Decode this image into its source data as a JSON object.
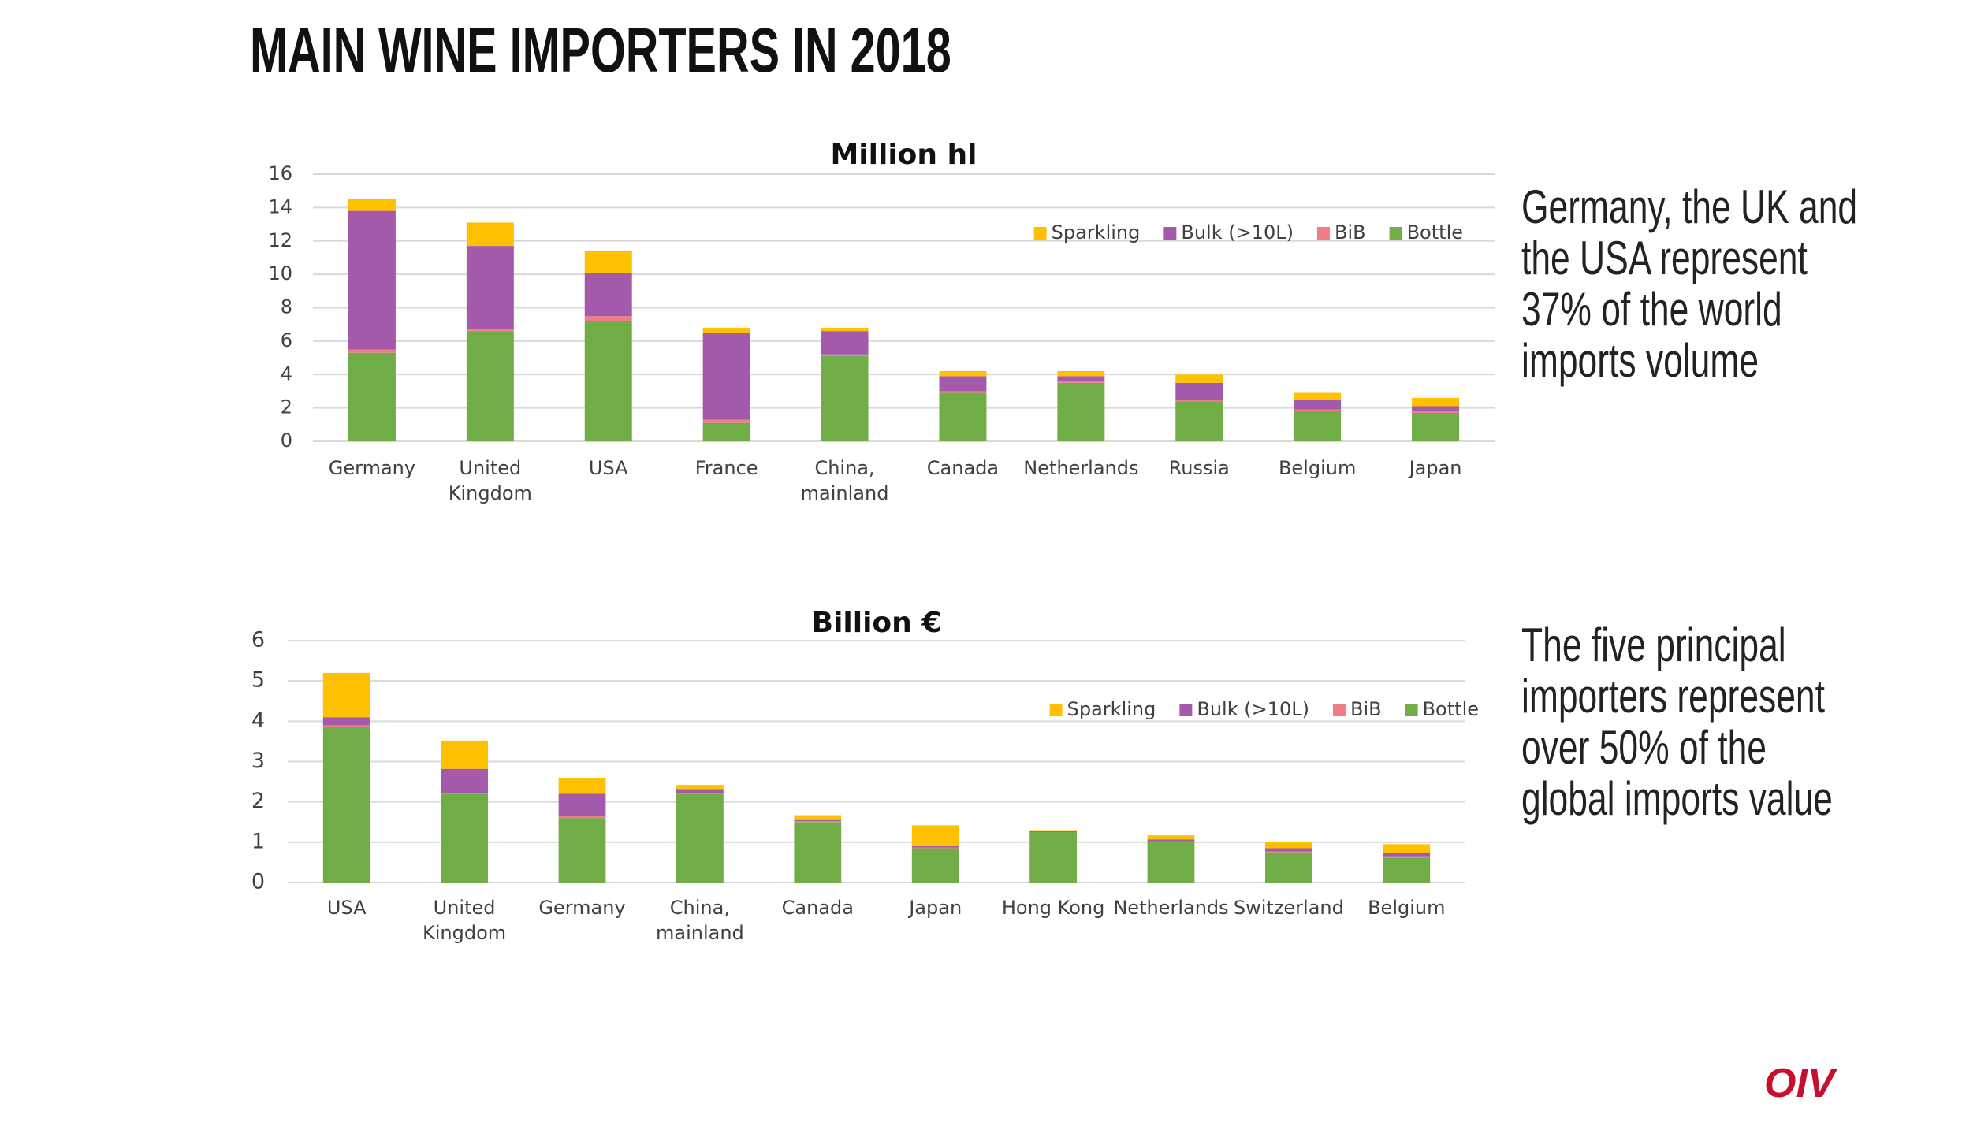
{
  "title": "MAIN WINE IMPORTERS  IN 2018",
  "notes": [
    "Germany, the UK and\nthe USA represent\n37% of the world\nimports volume",
    "The five principal\nimporters represent\nover 50% of the\nglobal imports value"
  ],
  "logo": "OIV",
  "chart_data": [
    {
      "type": "bar",
      "stacked": true,
      "title": "Million hl",
      "categories": [
        "Germany",
        "United\nKingdom",
        "USA",
        "France",
        "China,\nmainland",
        "Canada",
        "Netherlands",
        "Russia",
        "Belgium",
        "Japan"
      ],
      "series": [
        {
          "name": "Sparkling",
          "color": "#ffc000",
          "values": [
            0.7,
            1.4,
            1.3,
            0.3,
            0.2,
            0.3,
            0.3,
            0.5,
            0.4,
            0.5
          ]
        },
        {
          "name": "Bulk (>10L)",
          "color": "#a35aab",
          "values": [
            8.3,
            5.0,
            2.6,
            5.2,
            1.4,
            0.9,
            0.3,
            1.0,
            0.6,
            0.3
          ]
        },
        {
          "name": "BiB",
          "color": "#f07c8a",
          "values": [
            0.2,
            0.1,
            0.3,
            0.2,
            0.1,
            0.1,
            0.1,
            0.1,
            0.1,
            0.1
          ]
        },
        {
          "name": "Bottle",
          "color": "#70ad47",
          "values": [
            5.3,
            6.6,
            7.2,
            1.1,
            5.1,
            2.9,
            3.5,
            2.4,
            1.8,
            1.7
          ]
        }
      ],
      "ylim": [
        0,
        16
      ],
      "yticks": [
        0,
        2,
        4,
        6,
        8,
        10,
        12,
        14,
        16
      ],
      "grid": true,
      "legend": "top-right"
    },
    {
      "type": "bar",
      "stacked": true,
      "title": "Billion €",
      "categories": [
        "USA",
        "United\nKingdom",
        "Germany",
        "China,\nmainland",
        "Canada",
        "Japan",
        "Hong Kong",
        "Netherlands",
        "Switzerland",
        "Belgium"
      ],
      "series": [
        {
          "name": "Sparkling",
          "color": "#ffc000",
          "values": [
            1.1,
            0.7,
            0.4,
            0.1,
            0.1,
            0.5,
            0.03,
            0.1,
            0.15,
            0.22
          ]
        },
        {
          "name": "Bulk (>10L)",
          "color": "#a35aab",
          "values": [
            0.2,
            0.6,
            0.55,
            0.1,
            0.05,
            0.05,
            0.02,
            0.05,
            0.08,
            0.08
          ]
        },
        {
          "name": "BiB",
          "color": "#f07c8a",
          "values": [
            0.05,
            0.02,
            0.05,
            0.02,
            0.02,
            0.02,
            0,
            0.02,
            0.02,
            0.03
          ]
        },
        {
          "name": "Bottle",
          "color": "#70ad47",
          "values": [
            3.85,
            2.2,
            1.6,
            2.2,
            1.5,
            0.85,
            1.25,
            1.0,
            0.75,
            0.62
          ]
        }
      ],
      "ylim": [
        0,
        6
      ],
      "yticks": [
        0,
        1,
        2,
        3,
        4,
        5,
        6
      ],
      "grid": true,
      "legend": "top-right"
    }
  ]
}
